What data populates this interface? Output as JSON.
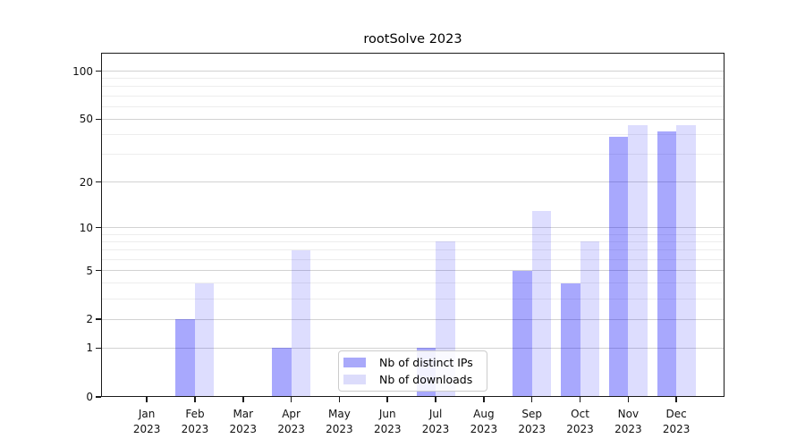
{
  "colors": {
    "bar_distinct_ips": "#a9a9fa",
    "bar_downloads": "#dcdcfb",
    "bar_distinct_ips_fill": "rgba(2,2,250,0.345)",
    "bar_downloads_fill": "rgba(2,2,250,0.135)",
    "grid_major": "#d2d2d2",
    "grid_minor": "#ededed",
    "axis": "#1a1a1a",
    "text": "#111111",
    "background": "#ffffff",
    "legend_border": "#cccccc"
  },
  "chart_data": {
    "type": "bar",
    "title": "rootSolve 2023",
    "x": [
      1,
      2,
      3,
      4,
      5,
      6,
      7,
      8,
      9,
      10,
      11,
      12
    ],
    "categories": [
      "Jan",
      "Feb",
      "Mar",
      "Apr",
      "May",
      "Jun",
      "Jul",
      "Aug",
      "Sep",
      "Oct",
      "Nov",
      "Dec"
    ],
    "year_label": "2023",
    "series": [
      {
        "name": "Nb of distinct IPs",
        "color_hex": "#a9a9fa",
        "fill": "rgba(2,2,250,0.345)",
        "offset": -0.2,
        "values": [
          0,
          2,
          0,
          1,
          0,
          0,
          1,
          0,
          5,
          4,
          39,
          42
        ]
      },
      {
        "name": "Nb of downloads",
        "color_hex": "#dcdcfb",
        "fill": "rgba(2,2,250,0.135)",
        "offset": 0.2,
        "values": [
          0,
          4,
          0,
          7,
          0,
          0,
          8,
          0,
          13,
          8,
          46,
          46
        ]
      }
    ],
    "y_scale": "log1p",
    "y_ticks": [
      100,
      50,
      20,
      10,
      5,
      2,
      1,
      0
    ],
    "y_minor_gridlines": [
      3,
      4,
      6,
      7,
      8,
      9,
      30,
      40,
      60,
      70,
      80,
      90
    ],
    "ylim": [
      0,
      130
    ],
    "xlim": [
      0.05,
      13.0
    ],
    "bar_width": 0.4,
    "grid": "horizontal-only",
    "legend_position": "lower center"
  }
}
